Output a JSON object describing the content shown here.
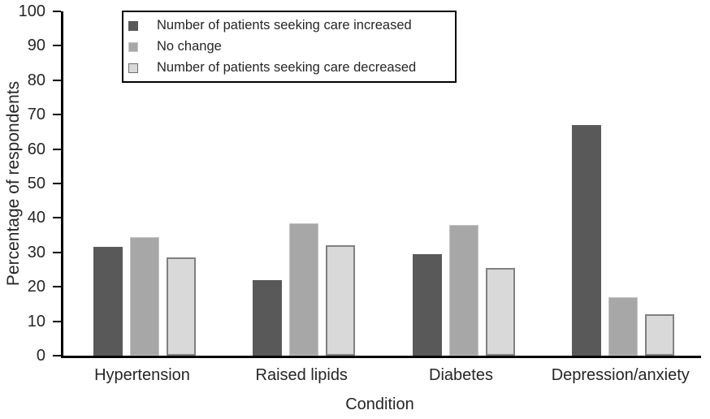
{
  "chart_data": {
    "type": "bar",
    "subtype": "grouped-vertical",
    "title": "",
    "xlabel": "Condition",
    "ylabel": "Percentage of respondents",
    "ylim": [
      0,
      100
    ],
    "ytick_step": 10,
    "ytick_labels": [
      "0",
      "10",
      "20",
      "30",
      "40",
      "50",
      "60",
      "70",
      "80",
      "90",
      "100"
    ],
    "grid": false,
    "legend_position": "top-left-inside",
    "background_color": "#ffffff",
    "axis_color": "#000000",
    "categories": [
      "Hypertension",
      "Raised lipids",
      "Diabetes",
      "Depression/anxiety"
    ],
    "series": [
      {
        "name": "Number of patients seeking care increased",
        "color": "#595959",
        "border_color": "#595959",
        "values": [
          31.5,
          22,
          29.5,
          67
        ]
      },
      {
        "name": "No change",
        "color": "#a7a7a7",
        "border_color": "#c4c4c4",
        "values": [
          34.5,
          38.5,
          38,
          17
        ]
      },
      {
        "name": "Number of patients seeking care decreased",
        "color": "#d9d9d9",
        "border_color": "#808080",
        "values": [
          28.5,
          32,
          25.5,
          12
        ]
      }
    ]
  }
}
